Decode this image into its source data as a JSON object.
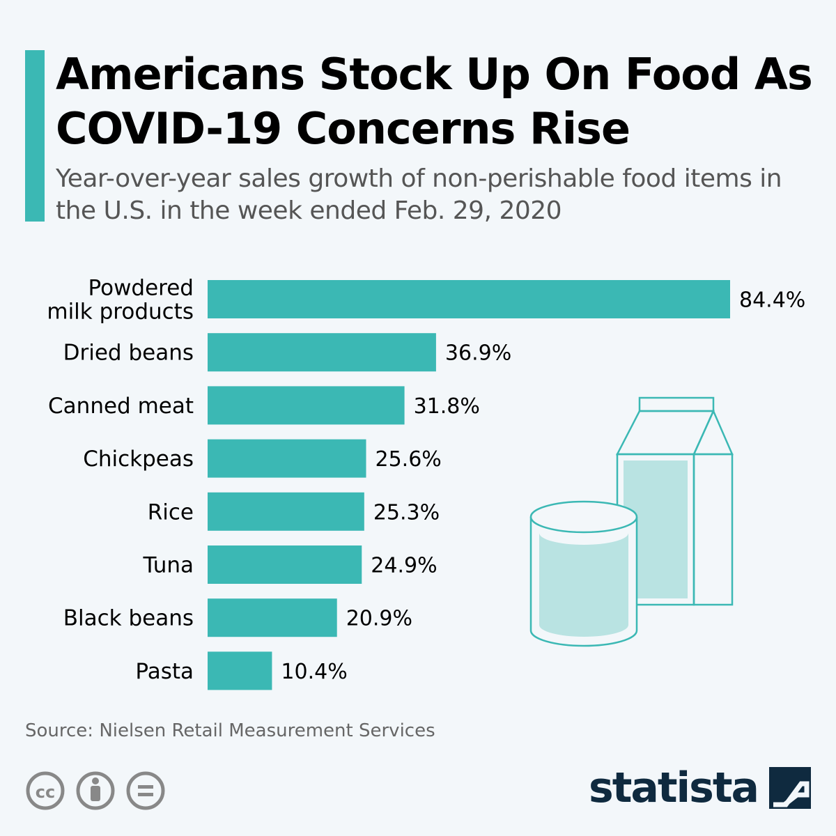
{
  "colors": {
    "accent": "#3bb8b4",
    "text": "#000000",
    "subtitle": "#555555",
    "logo": "#0f2a3f",
    "background": "#f3f7fa"
  },
  "header": {
    "title": "Americans Stock Up On Food As COVID-19 Concerns Rise",
    "subtitle": "Year-over-year sales growth of non-perishable food items in the U.S. in the week ended Feb. 29, 2020"
  },
  "chart_data": {
    "type": "bar",
    "orientation": "horizontal",
    "categories": [
      [
        "Powdered",
        "milk products"
      ],
      [
        "Dried beans"
      ],
      [
        "Canned meat"
      ],
      [
        "Chickpeas"
      ],
      [
        "Rice"
      ],
      [
        "Tuna"
      ],
      [
        "Black beans"
      ],
      [
        "Pasta"
      ]
    ],
    "values": [
      84.4,
      36.9,
      31.8,
      25.6,
      25.3,
      24.9,
      20.9,
      10.4
    ],
    "value_labels": [
      "84.4%",
      "36.9%",
      "31.8%",
      "25.6%",
      "25.3%",
      "24.9%",
      "20.9%",
      "10.4%"
    ],
    "title": "Americans Stock Up On Food As COVID-19 Concerns Rise",
    "xlim": [
      0,
      84.4
    ],
    "grid": false,
    "legend": "none"
  },
  "footer": {
    "source": "Source: Nielsen Retail Measurement Services",
    "logo": "statista",
    "license_icons": [
      "cc-icon",
      "attribution-icon",
      "no-derivatives-icon"
    ]
  }
}
